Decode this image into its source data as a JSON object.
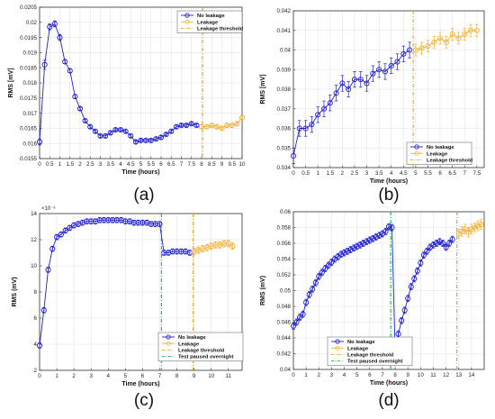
{
  "figure": {
    "panel_labels": [
      "(a)",
      "(b)",
      "(c)",
      "(d)"
    ]
  },
  "colors": {
    "no_leakage": "#1f1fd6",
    "leakage": "#f2b134",
    "threshold": "#e6a020",
    "paused": "#1fbf4a"
  },
  "chart_data": [
    {
      "type": "line",
      "panel": "(a)",
      "xlabel": "Time (hours)",
      "ylabel": "RMS [mV]",
      "xlim": [
        0,
        10
      ],
      "ylim": [
        0.0155,
        0.0205
      ],
      "xticks": [
        "0",
        "0.5",
        "1",
        "1.5",
        "2",
        "2.5",
        "3",
        "3.5",
        "4",
        "4.5",
        "5",
        "5.5",
        "6",
        "6.5",
        "7",
        "7.5",
        "8",
        "8.5",
        "9",
        "9.5",
        "10"
      ],
      "yticks": [
        "0.0155",
        "0.016",
        "0.0165",
        "0.017",
        "0.0175",
        "0.018",
        "0.0185",
        "0.019",
        "0.0195",
        "0.02",
        "0.0205"
      ],
      "grid": true,
      "legend": {
        "position": "top-right",
        "entries": [
          "No leakage",
          "Leakage",
          "Leakage threshold"
        ]
      },
      "threshold_x": 8.05,
      "series": [
        {
          "name": "No leakage",
          "x": [
            0,
            0.25,
            0.5,
            0.75,
            1,
            1.25,
            1.5,
            1.75,
            2,
            2.25,
            2.5,
            2.75,
            3,
            3.25,
            3.5,
            3.75,
            4,
            4.25,
            4.5,
            4.75,
            5,
            5.25,
            5.5,
            5.75,
            6,
            6.25,
            6.5,
            6.75,
            7,
            7.25,
            7.5,
            7.75
          ],
          "y": [
            0.01605,
            0.0186,
            0.01985,
            0.01995,
            0.0195,
            0.0187,
            0.0184,
            0.01755,
            0.01715,
            0.01675,
            0.01655,
            0.0164,
            0.01625,
            0.01625,
            0.01635,
            0.01645,
            0.01645,
            0.0164,
            0.01625,
            0.01605,
            0.0161,
            0.0161,
            0.0161,
            0.01615,
            0.0162,
            0.0163,
            0.0164,
            0.01655,
            0.0166,
            0.0166,
            0.01665,
            0.0166
          ],
          "err": [
            0.0001,
            0.00015,
            0.0001,
            0.0001,
            0.0001,
            6e-05,
            6e-05,
            6e-05,
            5e-05,
            5e-05,
            5e-05,
            5e-05,
            5e-05,
            5e-05,
            5e-05,
            5e-05,
            5e-05,
            5e-05,
            5e-05,
            5e-05,
            5e-05,
            5e-05,
            5e-05,
            5e-05,
            5e-05,
            5e-05,
            5e-05,
            5e-05,
            5e-05,
            5e-05,
            5e-05,
            5e-05
          ]
        },
        {
          "name": "Leakage",
          "x": [
            8,
            8.25,
            8.5,
            8.75,
            9,
            9.25,
            9.5,
            9.75,
            10
          ],
          "y": [
            0.01655,
            0.01655,
            0.0166,
            0.01655,
            0.0165,
            0.0166,
            0.0166,
            0.01665,
            0.01685
          ],
          "err": [
            6e-05,
            6e-05,
            6e-05,
            6e-05,
            6e-05,
            6e-05,
            6e-05,
            6e-05,
            6e-05
          ]
        }
      ]
    },
    {
      "type": "line",
      "panel": "(b)",
      "xlabel": "Time (hours)",
      "ylabel": "RMS [mV]",
      "xlim": [
        0,
        7.8
      ],
      "ylim": [
        0.034,
        0.042
      ],
      "xticks": [
        "0",
        "0.5",
        "1",
        "1.5",
        "2",
        "2.5",
        "3",
        "3.5",
        "4",
        "4.5",
        "5",
        "5.5",
        "6",
        "6.5",
        "7",
        "7.5"
      ],
      "yticks": [
        "0.034",
        "0.035",
        "0.036",
        "0.037",
        "0.038",
        "0.039",
        "0.04",
        "0.041",
        "0.042"
      ],
      "grid": true,
      "legend": {
        "position": "bottom-right",
        "entries": [
          "No leakage",
          "Leakage",
          "Leakage threshold"
        ]
      },
      "threshold_x": 4.9,
      "series": [
        {
          "name": "No leakage",
          "x": [
            0,
            0.25,
            0.5,
            0.75,
            1,
            1.25,
            1.5,
            1.75,
            2,
            2.25,
            2.5,
            2.75,
            3,
            3.25,
            3.5,
            3.75,
            4,
            4.25,
            4.5,
            4.75
          ],
          "y": [
            0.0346,
            0.036,
            0.036,
            0.0362,
            0.0367,
            0.037,
            0.0373,
            0.0378,
            0.0383,
            0.038,
            0.0385,
            0.0385,
            0.0383,
            0.0388,
            0.039,
            0.0389,
            0.0392,
            0.0394,
            0.0398,
            0.04
          ],
          "err": [
            0.0004,
            0.0004,
            0.0004,
            0.0004,
            0.0004,
            0.0004,
            0.0004,
            0.0004,
            0.0004,
            0.0004,
            0.0004,
            0.0004,
            0.0004,
            0.0004,
            0.0004,
            0.0004,
            0.0004,
            0.0004,
            0.0004,
            0.0004
          ]
        },
        {
          "name": "Leakage",
          "x": [
            5,
            5.25,
            5.5,
            5.75,
            6,
            6.25,
            6.5,
            6.75,
            7,
            7.25,
            7.5
          ],
          "y": [
            0.04,
            0.0401,
            0.0402,
            0.0404,
            0.0406,
            0.0404,
            0.0408,
            0.0406,
            0.0408,
            0.041,
            0.041
          ],
          "err": [
            0.0003,
            0.0003,
            0.0003,
            0.0003,
            0.0003,
            0.0003,
            0.0003,
            0.0003,
            0.0003,
            0.0003,
            0.0003
          ]
        }
      ]
    },
    {
      "type": "line",
      "panel": "(c)",
      "xlabel": "Time (hours)",
      "ylabel": "RMS (mV)",
      "exponent_label": "×10⁻³",
      "xlim": [
        0,
        11.8
      ],
      "ylim": [
        2,
        14
      ],
      "xticks": [
        "0",
        "1",
        "2",
        "3",
        "4",
        "5",
        "6",
        "7",
        "8",
        "9",
        "10",
        "11"
      ],
      "yticks": [
        "2",
        "4",
        "6",
        "8",
        "10",
        "12",
        "14"
      ],
      "grid": true,
      "legend": {
        "position": "bottom-right",
        "entries": [
          "No leakage",
          "Leakage",
          "Leakage threshold",
          "Test paused overnight"
        ]
      },
      "threshold_x": 8.95,
      "paused_x": 7.1,
      "series": [
        {
          "name": "No leakage",
          "x": [
            0,
            0.25,
            0.5,
            0.75,
            1,
            1.25,
            1.5,
            1.75,
            2,
            2.25,
            2.5,
            2.75,
            3,
            3.25,
            3.5,
            3.75,
            4,
            4.25,
            4.5,
            4.75,
            5,
            5.25,
            5.5,
            5.75,
            6,
            6.25,
            6.5,
            6.75,
            7,
            7.25,
            7.5,
            7.75,
            8,
            8.25,
            8.5,
            8.75
          ],
          "y": [
            3.9,
            6.6,
            9.7,
            11.3,
            12.2,
            12.4,
            12.7,
            12.9,
            13.1,
            13.2,
            13.3,
            13.4,
            13.4,
            13.4,
            13.5,
            13.5,
            13.5,
            13.5,
            13.5,
            13.5,
            13.4,
            13.4,
            13.3,
            13.3,
            13.3,
            13.3,
            13.2,
            13.2,
            13.2,
            11.0,
            11.0,
            11.1,
            11.1,
            11.1,
            11.1,
            11.0
          ],
          "err": [
            0.2,
            0.2,
            0.2,
            0.2,
            0.2,
            0.2,
            0.2,
            0.2,
            0.2,
            0.2,
            0.2,
            0.2,
            0.2,
            0.2,
            0.2,
            0.2,
            0.2,
            0.2,
            0.2,
            0.2,
            0.2,
            0.2,
            0.2,
            0.2,
            0.2,
            0.2,
            0.2,
            0.2,
            0.2,
            0.2,
            0.2,
            0.2,
            0.2,
            0.2,
            0.2,
            0.2
          ]
        },
        {
          "name": "Leakage",
          "x": [
            9,
            9.25,
            9.5,
            9.75,
            10,
            10.25,
            10.5,
            10.75,
            11,
            11.25
          ],
          "y": [
            11.1,
            11.2,
            11.3,
            11.4,
            11.5,
            11.6,
            11.6,
            11.7,
            11.7,
            11.5
          ],
          "err": [
            0.25,
            0.25,
            0.25,
            0.25,
            0.25,
            0.25,
            0.25,
            0.25,
            0.25,
            0.25
          ]
        }
      ]
    },
    {
      "type": "line",
      "panel": "(d)",
      "xlabel": "Time (hours)",
      "ylabel": "RMS (mV)",
      "xlim": [
        0,
        15
      ],
      "ylim": [
        0.04,
        0.06
      ],
      "xticks": [
        "0",
        "1",
        "2",
        "3",
        "4",
        "5",
        "6",
        "7",
        "8",
        "9",
        "10",
        "11",
        "12",
        "13",
        "14"
      ],
      "yticks": [
        "0.04",
        "0.042",
        "0.044",
        "0.046",
        "0.048",
        "0.05",
        "0.052",
        "0.054",
        "0.056",
        "0.058",
        "0.06"
      ],
      "grid": true,
      "legend": {
        "position": "bottom-left",
        "entries": [
          "No leakage",
          "Leakage",
          "Leakage threshold",
          "Test paused overnight"
        ]
      },
      "threshold_x": 12.85,
      "paused_x": 7.65,
      "series": [
        {
          "name": "No leakage",
          "x": [
            0,
            0.25,
            0.5,
            0.75,
            1,
            1.25,
            1.5,
            1.75,
            2,
            2.25,
            2.5,
            2.75,
            3,
            3.25,
            3.5,
            3.75,
            4,
            4.25,
            4.5,
            4.75,
            5,
            5.25,
            5.5,
            5.75,
            6,
            6.25,
            6.5,
            6.75,
            7,
            7.25,
            7.5,
            7.75,
            8,
            8.25,
            8.5,
            8.75,
            9,
            9.25,
            9.5,
            9.75,
            10,
            10.25,
            10.5,
            10.75,
            11,
            11.25,
            11.5,
            11.75,
            12,
            12.25,
            12.5
          ],
          "y": [
            0.0455,
            0.046,
            0.0466,
            0.047,
            0.0485,
            0.0495,
            0.0502,
            0.051,
            0.0518,
            0.0523,
            0.0528,
            0.0532,
            0.0536,
            0.054,
            0.0543,
            0.0546,
            0.0548,
            0.055,
            0.0552,
            0.0554,
            0.0556,
            0.0558,
            0.056,
            0.0562,
            0.0564,
            0.0566,
            0.0568,
            0.057,
            0.0572,
            0.0575,
            0.0581,
            0.058,
            0.0421,
            0.0445,
            0.0462,
            0.0475,
            0.049,
            0.0505,
            0.0515,
            0.0525,
            0.0535,
            0.0545,
            0.055,
            0.0555,
            0.0558,
            0.056,
            0.0562,
            0.056,
            0.0555,
            0.056,
            0.0565
          ],
          "err": [
            0.0004,
            0.0004,
            0.0004,
            0.0004,
            0.0004,
            0.0004,
            0.0004,
            0.0004,
            0.0004,
            0.0004,
            0.0004,
            0.0004,
            0.0004,
            0.0004,
            0.0004,
            0.0004,
            0.0004,
            0.0004,
            0.0004,
            0.0004,
            0.0004,
            0.0004,
            0.0004,
            0.0004,
            0.0004,
            0.0004,
            0.0004,
            0.0004,
            0.0004,
            0.0004,
            0.0004,
            0.0004,
            0.0004,
            0.0004,
            0.0004,
            0.0004,
            0.0004,
            0.0004,
            0.0004,
            0.0004,
            0.0004,
            0.0004,
            0.0004,
            0.0004,
            0.0004,
            0.0004,
            0.0004,
            0.0004,
            0.0004,
            0.0004,
            0.0004
          ]
        },
        {
          "name": "Leakage",
          "x": [
            13,
            13.25,
            13.5,
            13.75,
            14,
            14.25,
            14.5,
            14.75
          ],
          "y": [
            0.0572,
            0.0575,
            0.0578,
            0.0574,
            0.0578,
            0.058,
            0.0582,
            0.0584
          ],
          "err": [
            0.0006,
            0.0006,
            0.0006,
            0.0006,
            0.0006,
            0.0006,
            0.0006,
            0.0006
          ]
        }
      ]
    }
  ]
}
